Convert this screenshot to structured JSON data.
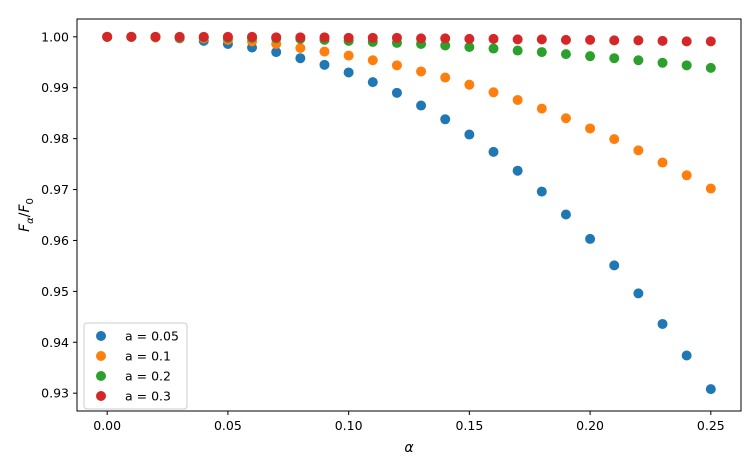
{
  "chart_data": {
    "type": "scatter",
    "title": "",
    "xlabel": "α",
    "ylabel": "F",
    "ylabel_sub_a": "α",
    "ylabel_sub_0": "0",
    "ylabel_sep": "/",
    "xlim": [
      -0.0125,
      0.2625
    ],
    "ylim": [
      0.9265,
      1.0035
    ],
    "xticks": [
      0.0,
      0.05,
      0.1,
      0.15,
      0.2,
      0.25
    ],
    "xtick_labels": [
      "0.00",
      "0.05",
      "0.10",
      "0.15",
      "0.20",
      "0.25"
    ],
    "yticks": [
      0.93,
      0.94,
      0.95,
      0.96,
      0.97,
      0.98,
      0.99,
      1.0
    ],
    "ytick_labels": [
      "0.93",
      "0.94",
      "0.95",
      "0.96",
      "0.97",
      "0.98",
      "0.99",
      "1.00"
    ],
    "grid": false,
    "legend_position": "lower-left",
    "x": [
      0.0,
      0.01,
      0.02,
      0.03,
      0.04,
      0.05,
      0.06,
      0.07,
      0.08,
      0.09,
      0.1,
      0.11,
      0.12,
      0.13,
      0.14,
      0.15,
      0.16,
      0.17,
      0.18,
      0.19,
      0.2,
      0.21,
      0.22,
      0.23,
      0.24,
      0.25
    ],
    "series": [
      {
        "name": "a = 0.05",
        "color": "#1f77b4",
        "values": [
          1.0,
          1.0,
          0.9999,
          0.9997,
          0.9992,
          0.9986,
          0.9979,
          0.997,
          0.9958,
          0.9945,
          0.993,
          0.9911,
          0.989,
          0.9865,
          0.9838,
          0.9808,
          0.9774,
          0.9737,
          0.9696,
          0.9651,
          0.9603,
          0.9551,
          0.9496,
          0.9436,
          0.9374,
          0.9308
        ]
      },
      {
        "name": "a = 0.1",
        "color": "#ff7f0e",
        "values": [
          1.0,
          1.0,
          0.9999,
          0.9998,
          0.9997,
          0.9994,
          0.9991,
          0.9986,
          0.9978,
          0.9971,
          0.9963,
          0.9954,
          0.9944,
          0.9932,
          0.992,
          0.9906,
          0.9891,
          0.9876,
          0.9859,
          0.984,
          0.982,
          0.9799,
          0.9777,
          0.9753,
          0.9728,
          0.9702
        ]
      },
      {
        "name": "a = 0.2",
        "color": "#2ca02c",
        "values": [
          1.0,
          1.0,
          1.0,
          0.9999,
          0.9999,
          0.9998,
          0.9998,
          0.9997,
          0.9996,
          0.9994,
          0.9992,
          0.999,
          0.9988,
          0.9986,
          0.9983,
          0.998,
          0.9977,
          0.9973,
          0.997,
          0.9966,
          0.9962,
          0.9958,
          0.9954,
          0.9949,
          0.9944,
          0.9939
        ]
      },
      {
        "name": "a = 0.3",
        "color": "#d62728",
        "values": [
          1.0,
          1.0,
          1.0,
          1.0,
          1.0,
          1.0,
          1.0,
          0.9999,
          0.9999,
          0.9999,
          0.9998,
          0.9998,
          0.9998,
          0.9997,
          0.9997,
          0.9996,
          0.9996,
          0.9995,
          0.9995,
          0.9994,
          0.9994,
          0.9993,
          0.9993,
          0.9992,
          0.9991,
          0.9991
        ]
      }
    ]
  }
}
